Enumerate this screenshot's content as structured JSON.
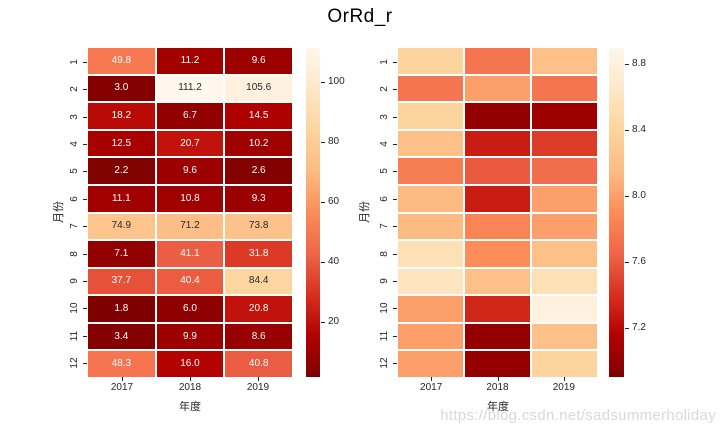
{
  "title": "OrRd_r",
  "watermark": "https://blog.csdn.net/sadsummerholiday",
  "colormap": {
    "name": "OrRd_r",
    "orrd_stops": [
      "#fff7ec",
      "#fee8c8",
      "#fdd49e",
      "#fdbb84",
      "#fc8d59",
      "#ef6548",
      "#d7301f",
      "#b30000",
      "#7f0000"
    ],
    "dark_text": "#262626",
    "light_text": "#ffffff"
  },
  "chart_data": [
    {
      "type": "heatmap",
      "name": "annotated-heatmap",
      "xlabel": "年度",
      "ylabel": "月份",
      "x_ticks": [
        "2017",
        "2018",
        "2019"
      ],
      "y_ticks": [
        "1",
        "2",
        "3",
        "4",
        "5",
        "6",
        "7",
        "8",
        "9",
        "10",
        "11",
        "12"
      ],
      "annotated": true,
      "vmin": 1.8,
      "vmax": 111.2,
      "legend_position": "right-colorbar",
      "grid": false,
      "colorbar_ticks": [
        {
          "value": 20,
          "label": "20"
        },
        {
          "value": 40,
          "label": "40"
        },
        {
          "value": 60,
          "label": "60"
        },
        {
          "value": 80,
          "label": "80"
        },
        {
          "value": 100,
          "label": "100"
        }
      ],
      "values": [
        [
          49.8,
          11.2,
          9.6
        ],
        [
          3.0,
          111.2,
          105.6
        ],
        [
          18.2,
          6.7,
          14.5
        ],
        [
          12.5,
          20.7,
          10.2
        ],
        [
          2.2,
          9.6,
          2.6
        ],
        [
          11.1,
          10.8,
          9.3
        ],
        [
          74.9,
          71.2,
          73.8
        ],
        [
          7.1,
          41.1,
          31.8
        ],
        [
          37.7,
          40.4,
          84.4
        ],
        [
          1.8,
          6.0,
          20.8
        ],
        [
          3.4,
          9.9,
          8.6
        ],
        [
          48.3,
          16.0,
          40.8
        ]
      ]
    },
    {
      "type": "heatmap",
      "name": "plain-heatmap",
      "xlabel": "年度",
      "ylabel": "月份",
      "x_ticks": [
        "2017",
        "2018",
        "2019"
      ],
      "y_ticks": [
        "1",
        "2",
        "3",
        "4",
        "5",
        "6",
        "7",
        "8",
        "9",
        "10",
        "11",
        "12"
      ],
      "annotated": false,
      "vmin": 6.9,
      "vmax": 8.9,
      "legend_position": "right-colorbar",
      "grid": false,
      "colorbar_ticks": [
        {
          "value": 7.2,
          "label": "7.2"
        },
        {
          "value": 7.6,
          "label": "7.6"
        },
        {
          "value": 8.0,
          "label": "8.0"
        },
        {
          "value": 8.4,
          "label": "8.4"
        },
        {
          "value": 8.8,
          "label": "8.8"
        }
      ],
      "values": [
        [
          8.4,
          7.75,
          8.2
        ],
        [
          7.75,
          8.0,
          7.75
        ],
        [
          8.4,
          7.0,
          7.05
        ],
        [
          8.2,
          7.3,
          7.45
        ],
        [
          7.8,
          7.6,
          7.7
        ],
        [
          8.15,
          7.3,
          8.0
        ],
        [
          8.15,
          7.85,
          8.0
        ],
        [
          8.55,
          7.9,
          8.2
        ],
        [
          8.6,
          8.2,
          8.55
        ],
        [
          8.0,
          7.35,
          8.8
        ],
        [
          8.0,
          7.0,
          8.2
        ],
        [
          8.0,
          7.0,
          8.4
        ]
      ]
    }
  ]
}
